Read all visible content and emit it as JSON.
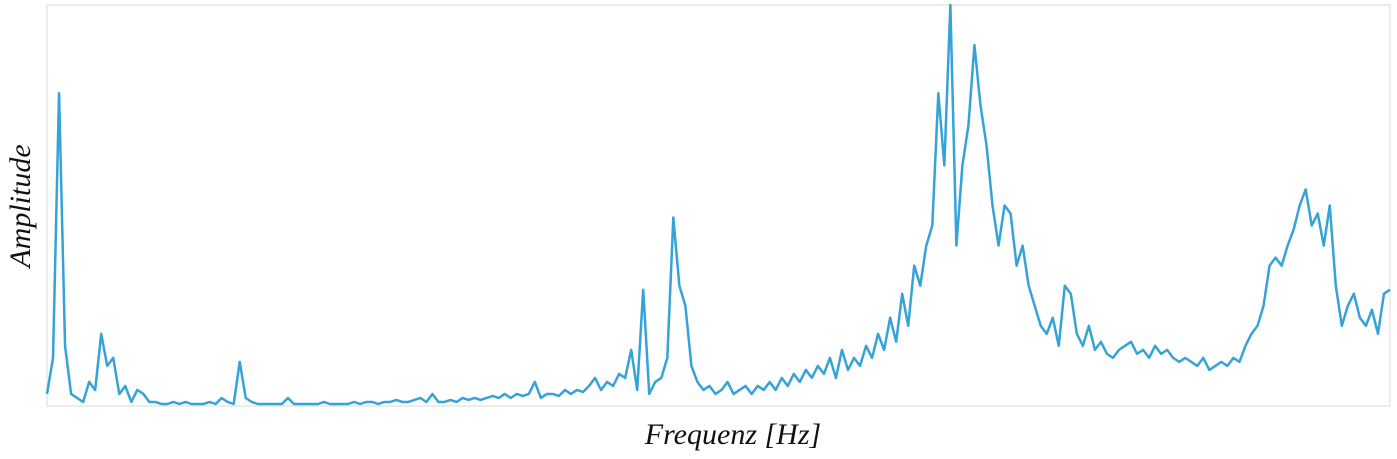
{
  "chart_data": {
    "type": "line",
    "x_label": "Frequenz [Hz]",
    "y_label": "Amplitude",
    "color": "#35a2d8",
    "ylim": [
      0,
      100
    ],
    "values": [
      3,
      12,
      78,
      15,
      3,
      2,
      1,
      6,
      4,
      18,
      10,
      12,
      3,
      5,
      1,
      4,
      3,
      1,
      1,
      0.5,
      0.5,
      1,
      0.5,
      1,
      0.5,
      0.5,
      0.5,
      1,
      0.5,
      2,
      1,
      0.5,
      11,
      2,
      1,
      0.5,
      0.5,
      0.5,
      0.5,
      0.5,
      2,
      0.5,
      0.5,
      0.5,
      0.5,
      0.5,
      1,
      0.5,
      0.5,
      0.5,
      0.5,
      1,
      0.5,
      1,
      1,
      0.5,
      1,
      1,
      1.5,
      1,
      1,
      1.5,
      2,
      1,
      3,
      1,
      1,
      1.5,
      1,
      2,
      1.5,
      2,
      1.5,
      2,
      2.5,
      2,
      3,
      2,
      3,
      2.5,
      3,
      6,
      2,
      3,
      3,
      2.5,
      4,
      3,
      4,
      3.5,
      5,
      7,
      4,
      6,
      5,
      8,
      7,
      14,
      4,
      29,
      3,
      6,
      7,
      12,
      47,
      30,
      25,
      10,
      6,
      4,
      5,
      3,
      4,
      6,
      3,
      4,
      5,
      3,
      5,
      4,
      6,
      4,
      7,
      5,
      8,
      6,
      9,
      7,
      10,
      8,
      12,
      7,
      14,
      9,
      12,
      10,
      15,
      12,
      18,
      14,
      22,
      16,
      28,
      20,
      35,
      30,
      40,
      45,
      78,
      60,
      100,
      40,
      60,
      70,
      90,
      75,
      65,
      50,
      40,
      50,
      48,
      35,
      40,
      30,
      25,
      20,
      18,
      22,
      15,
      30,
      28,
      18,
      15,
      20,
      14,
      16,
      13,
      12,
      14,
      15,
      16,
      13,
      14,
      12,
      15,
      13,
      14,
      12,
      11,
      12,
      11,
      10,
      12,
      9,
      10,
      11,
      10,
      12,
      11,
      15,
      18,
      20,
      25,
      35,
      37,
      35,
      40,
      44,
      50,
      54,
      45,
      48,
      40,
      50,
      30,
      20,
      25,
      28,
      22,
      20,
      24,
      18,
      28,
      29
    ]
  }
}
